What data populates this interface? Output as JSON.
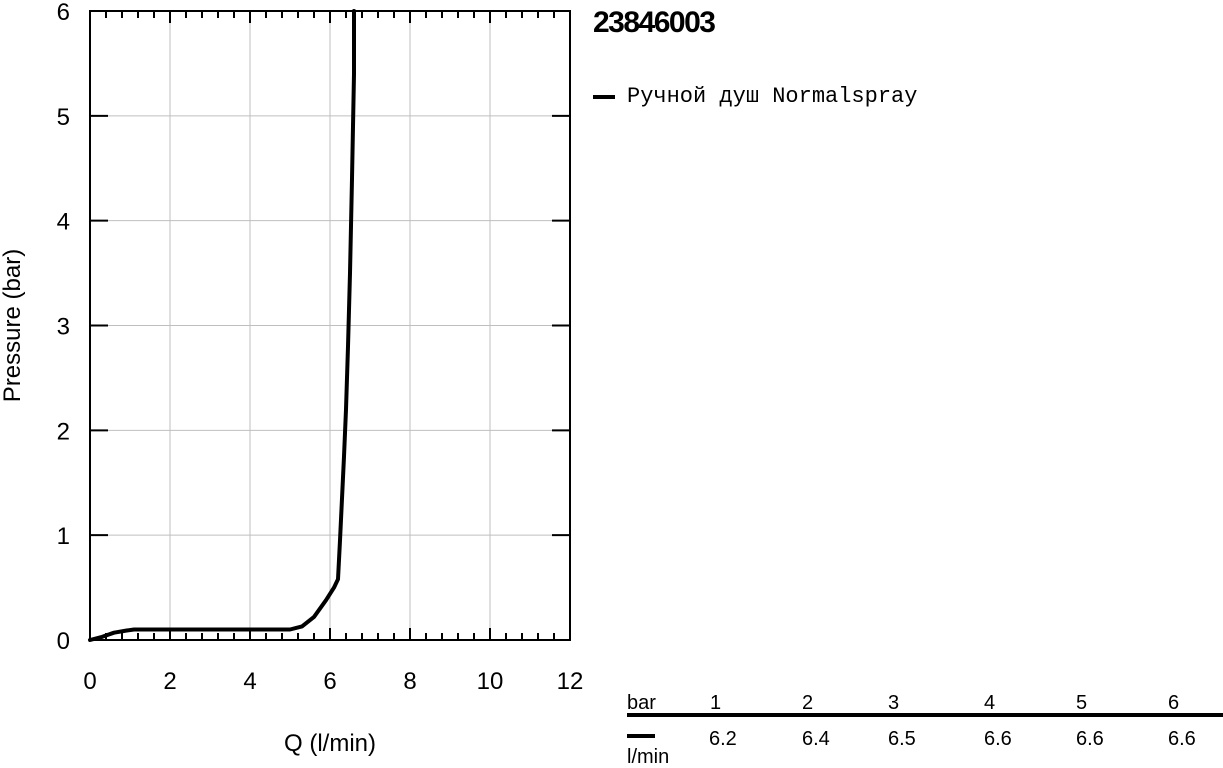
{
  "chart_data": {
    "type": "line",
    "title": "23846003",
    "xlabel": "Q (l/min)",
    "ylabel": "Pressure (bar)",
    "xlim": [
      0,
      12
    ],
    "ylim": [
      0,
      6
    ],
    "x_ticks": [
      "0",
      "2",
      "4",
      "6",
      "8",
      "10",
      "12"
    ],
    "y_ticks": [
      "0",
      "1",
      "2",
      "3",
      "4",
      "5",
      "6"
    ],
    "grid": true,
    "legend_position": "top-right, outside plot",
    "series": [
      {
        "name": "Ручной душ Normalspray",
        "color": "#000000",
        "x": [
          0,
          0.3,
          0.6,
          0.9,
          1.1,
          2,
          3,
          4,
          5,
          5.3,
          5.6,
          5.9,
          6.1,
          6.2,
          6.25,
          6.3,
          6.35,
          6.4,
          6.45,
          6.5,
          6.55,
          6.6,
          6.6
        ],
        "y": [
          0,
          0.03,
          0.07,
          0.09,
          0.1,
          0.1,
          0.1,
          0.1,
          0.1,
          0.13,
          0.22,
          0.38,
          0.5,
          0.58,
          0.95,
          1.35,
          1.75,
          2.2,
          2.8,
          3.5,
          4.4,
          5.4,
          6
        ]
      }
    ],
    "table": {
      "header_label": "bar",
      "unit_label": "l/min",
      "pressures": [
        "1",
        "2",
        "3",
        "4",
        "5",
        "6"
      ],
      "flows": [
        "6.2",
        "6.4",
        "6.5",
        "6.6",
        "6.6",
        "6.6"
      ]
    }
  }
}
